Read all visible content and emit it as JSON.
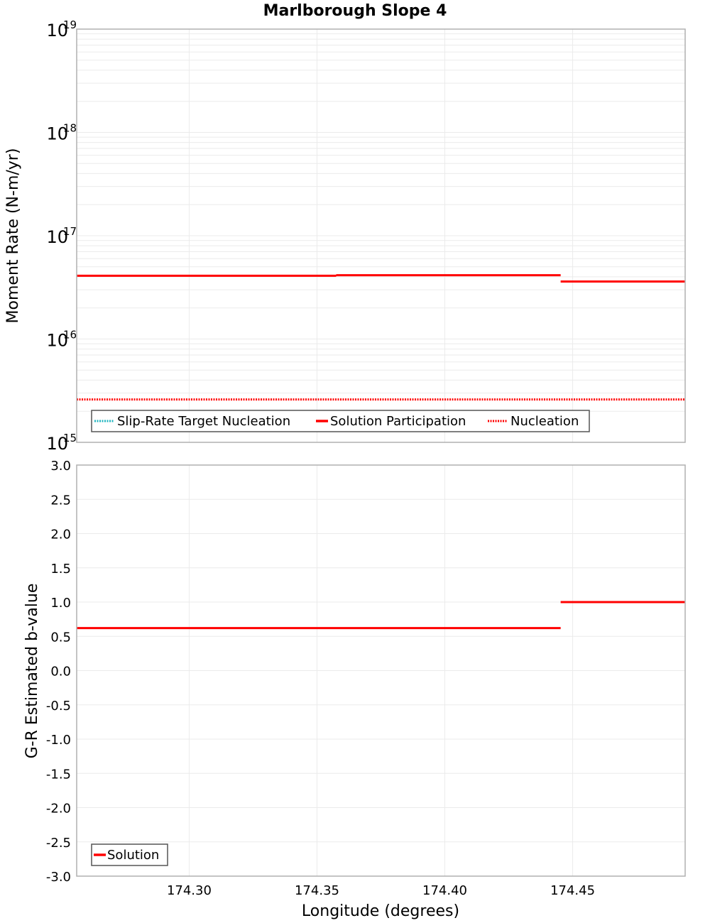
{
  "title": "Marlborough Slope 4",
  "colors": {
    "solution": "#ff0000",
    "nucleation": "#ff0000",
    "slip_rate_target": "#22b5c0",
    "grid": "#ebebeb",
    "frame": "#b0b0b0",
    "legend_border": "#555555"
  },
  "top_panel": {
    "ylabel": "Moment Rate (N-m/yr)",
    "yticks": [
      {
        "base": "10",
        "exp": "19"
      },
      {
        "base": "10",
        "exp": "18"
      },
      {
        "base": "10",
        "exp": "17"
      },
      {
        "base": "10",
        "exp": "16"
      },
      {
        "base": "10",
        "exp": "15"
      }
    ],
    "legend": [
      {
        "label": "Slip-Rate Target Nucleation",
        "style": "dotted",
        "color": "#22b5c0"
      },
      {
        "label": "Solution Participation",
        "style": "solid",
        "color": "#ff0000"
      },
      {
        "label": "Nucleation",
        "style": "dotted",
        "color": "#ff0000"
      }
    ]
  },
  "bottom_panel": {
    "ylabel": "G-R Estimated b-value",
    "yticks": [
      "3.0",
      "2.5",
      "2.0",
      "1.5",
      "1.0",
      "0.5",
      "0.0",
      "-0.5",
      "-1.0",
      "-1.5",
      "-2.0",
      "-2.5",
      "-3.0"
    ],
    "legend": [
      {
        "label": "Solution",
        "style": "solid",
        "color": "#ff0000"
      }
    ]
  },
  "xaxis": {
    "label": "Longitude (degrees)",
    "ticks": [
      "174.30",
      "174.35",
      "174.40",
      "174.45"
    ]
  },
  "chart_data": [
    {
      "type": "line",
      "title": "Marlborough Slope 4",
      "xlabel": "Longitude (degrees)",
      "ylabel": "Moment Rate (N-m/yr)",
      "yscale": "log",
      "xlim": [
        174.256,
        174.494
      ],
      "ylim": [
        1000000000000000.0,
        1e+19
      ],
      "grid": true,
      "legend_position": "lower-left",
      "series": [
        {
          "name": "Slip-Rate Target Nucleation",
          "style": "dotted",
          "color": "#22b5c0",
          "segments": []
        },
        {
          "name": "Solution Participation",
          "style": "solid",
          "color": "#ff0000",
          "segments": [
            {
              "x": [
                174.256,
                174.3575
              ],
              "y": 4.1e+16
            },
            {
              "x": [
                174.3575,
                174.4453
              ],
              "y": 4.15e+16
            },
            {
              "x": [
                174.4453,
                174.494
              ],
              "y": 3.6e+16
            }
          ]
        },
        {
          "name": "Nucleation",
          "style": "dotted",
          "color": "#ff0000",
          "segments": [
            {
              "x": [
                174.256,
                174.494
              ],
              "y": 2600000000000000.0
            }
          ]
        }
      ]
    },
    {
      "type": "line",
      "xlabel": "Longitude (degrees)",
      "ylabel": "G-R Estimated b-value",
      "xlim": [
        174.256,
        174.494
      ],
      "ylim": [
        -3.0,
        3.0
      ],
      "grid": true,
      "legend_position": "lower-left",
      "series": [
        {
          "name": "Solution",
          "style": "solid",
          "color": "#ff0000",
          "segments": [
            {
              "x": [
                174.256,
                174.4453
              ],
              "y": 0.62
            },
            {
              "x": [
                174.4453,
                174.494
              ],
              "y": 1.0
            }
          ]
        }
      ]
    }
  ]
}
